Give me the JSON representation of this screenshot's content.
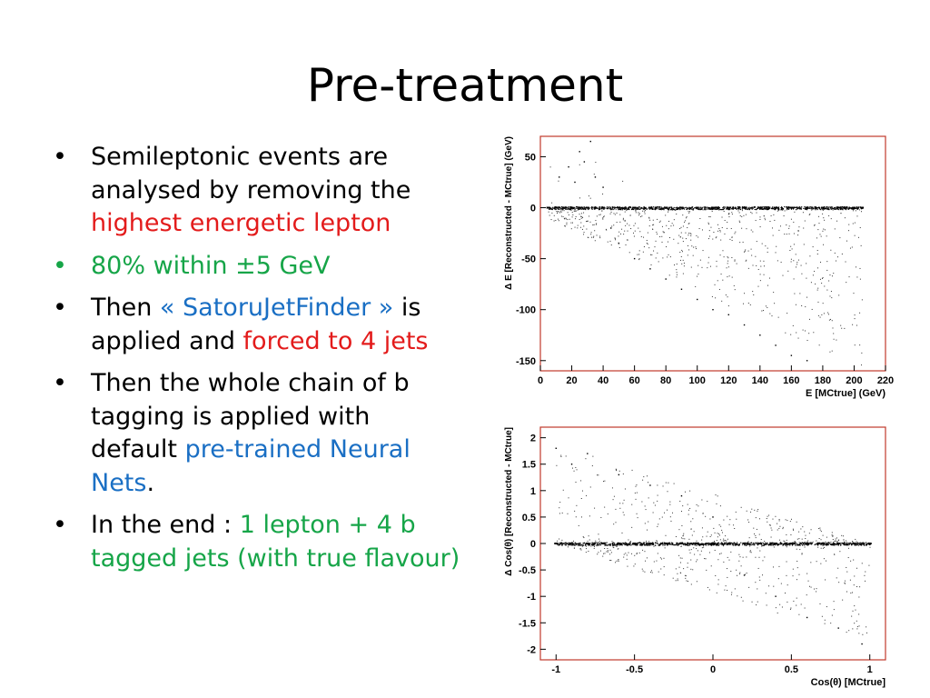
{
  "slide": {
    "title": "Pre-treatment",
    "bullets": [
      {
        "color": "#000000",
        "segments": [
          {
            "text": "Semileptonic events are analysed by removing the ",
            "color": "#000000"
          },
          {
            "text": "highest energetic lepton",
            "color": "#e31b1b"
          }
        ]
      },
      {
        "color": "#16a548",
        "segments": [
          {
            "text": "80% within ±5 GeV",
            "color": "#16a548"
          }
        ]
      },
      {
        "color": "#000000",
        "segments": [
          {
            "text": "Then ",
            "color": "#000000"
          },
          {
            "text": "« SatoruJetFinder »",
            "color": "#1a6fc4"
          },
          {
            "text": " is applied and ",
            "color": "#000000"
          },
          {
            "text": "forced to 4 jets",
            "color": "#e31b1b"
          }
        ]
      },
      {
        "color": "#000000",
        "segments": [
          {
            "text": "Then the whole chain of b tagging is applied with default ",
            "color": "#000000"
          },
          {
            "text": "pre-trained Neural Nets",
            "color": "#1a6fc4"
          },
          {
            "text": ".",
            "color": "#000000"
          }
        ]
      },
      {
        "color": "#000000",
        "segments": [
          {
            "text": "In the end : ",
            "color": "#000000"
          },
          {
            "text": "1 lepton + 4 b tagged jets (with true flavour)",
            "color": "#16a548"
          }
        ]
      }
    ]
  },
  "chart_data": [
    {
      "type": "scatter",
      "title": "",
      "xlabel": "E [MCtrue] (GeV)",
      "ylabel": "Δ E [Reconstructed - MCtrue] (GeV)",
      "xlim": [
        0,
        220
      ],
      "ylim": [
        -160,
        70
      ],
      "xticks": [
        "0",
        "20",
        "40",
        "60",
        "80",
        "100",
        "120",
        "140",
        "160",
        "180",
        "200",
        "220"
      ],
      "yticks": [
        "50",
        "0",
        "-50",
        "-100",
        "-150"
      ],
      "grid": false,
      "frame_color": "#c0392b",
      "series": [
        {
          "x": [
            5,
            10,
            15,
            20,
            25,
            30,
            35,
            40,
            50,
            60,
            70,
            80,
            90,
            100,
            110,
            120,
            130,
            140,
            150,
            160,
            170,
            180,
            190,
            200,
            205
          ],
          "y": [
            0,
            0,
            0,
            0,
            0,
            0,
            0,
            0,
            0,
            0,
            0,
            0,
            0,
            0,
            0,
            0,
            0,
            0,
            0,
            0,
            0,
            0,
            0,
            0,
            0
          ]
        },
        {
          "x": [
            12,
            18,
            22,
            25,
            28,
            32,
            35,
            40,
            45,
            50,
            60,
            70,
            80,
            90,
            100,
            110,
            120,
            130,
            140,
            150,
            160,
            170
          ],
          "y": [
            30,
            40,
            25,
            55,
            45,
            65,
            30,
            20,
            -20,
            -35,
            -50,
            -60,
            -70,
            -80,
            -90,
            -100,
            -105,
            -115,
            -125,
            -135,
            -145,
            -150
          ]
        }
      ]
    },
    {
      "type": "scatter",
      "title": "",
      "xlabel": "Cos(θ) [MCtrue]",
      "ylabel": "Δ Cos(θ) [Reconstructed - MCtrue]",
      "xlim": [
        -1.1,
        1.1
      ],
      "ylim": [
        -2.2,
        2.2
      ],
      "xticks": [
        "-1",
        "-0.5",
        "0",
        "0.5",
        "1"
      ],
      "yticks": [
        "2",
        "1.5",
        "1",
        "0.5",
        "0",
        "-0.5",
        "-1",
        "-1.5",
        "-2"
      ],
      "grid": false,
      "frame_color": "#c0392b",
      "series": [
        {
          "x": [
            -1,
            -0.9,
            -0.8,
            -0.7,
            -0.6,
            -0.5,
            -0.4,
            -0.3,
            -0.2,
            -0.1,
            0,
            0.1,
            0.2,
            0.3,
            0.4,
            0.5,
            0.6,
            0.7,
            0.8,
            0.9,
            1
          ],
          "y": [
            0,
            0,
            0,
            0,
            0,
            0,
            0,
            0,
            0,
            0,
            0,
            0,
            0,
            0,
            0,
            0,
            0,
            0,
            0,
            0,
            0
          ]
        },
        {
          "x": [
            -1,
            -0.9,
            -0.8,
            -0.6,
            -0.4,
            -0.2,
            0,
            0.2,
            0.4,
            0.6,
            0.8,
            0.95
          ],
          "y": [
            1.8,
            1.5,
            1.7,
            1.3,
            1.1,
            0.9,
            0.5,
            -0.6,
            -1.0,
            -1.4,
            -1.6,
            -1.9
          ]
        }
      ]
    }
  ]
}
